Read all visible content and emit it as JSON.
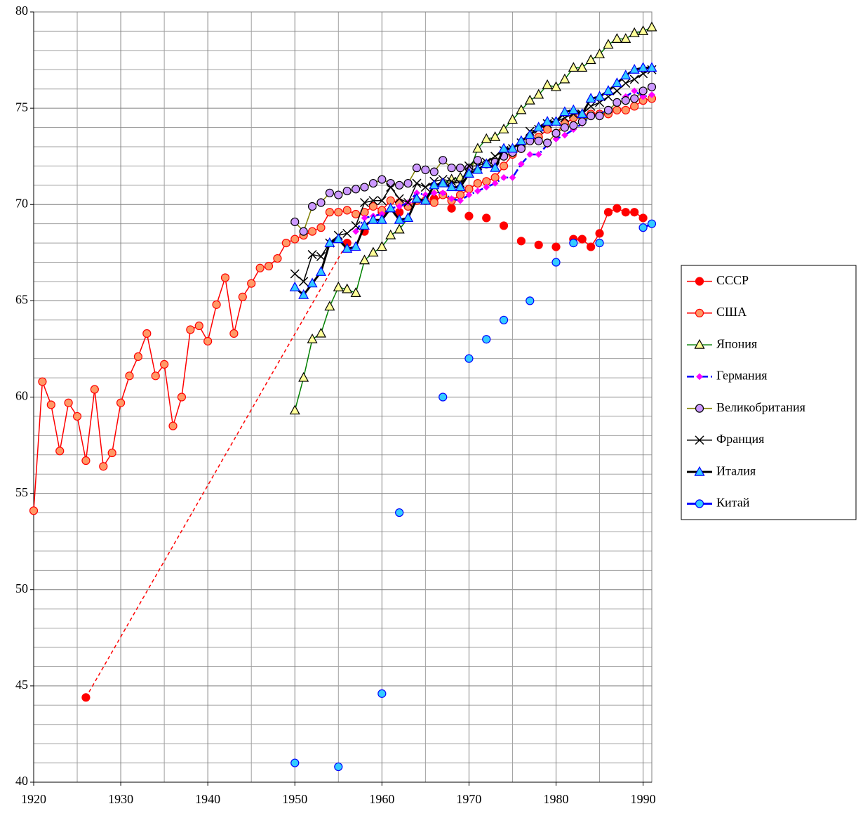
{
  "chart_data": {
    "type": "line",
    "xlim": [
      1920,
      1991
    ],
    "xticks": [
      1920,
      1930,
      1940,
      1950,
      1960,
      1970,
      1980,
      1990
    ],
    "x_minor_ticks": [
      1925,
      1935,
      1945,
      1955,
      1965,
      1975,
      1985
    ],
    "ylim": [
      40,
      80
    ],
    "yticks": [
      40,
      45,
      50,
      55,
      60,
      65,
      70,
      75,
      80
    ],
    "y_minor_ticks": [
      41,
      42,
      43,
      44,
      46,
      47,
      48,
      49,
      51,
      52,
      53,
      54,
      56,
      57,
      58,
      59,
      61,
      62,
      63,
      64,
      66,
      67,
      68,
      69,
      71,
      72,
      73,
      74,
      76,
      77,
      78,
      79
    ],
    "grid": true,
    "legend": "right",
    "series": [
      {
        "name": "СССР",
        "color": "#ff0000",
        "marker": "circle",
        "marker_fill": "#ff0000",
        "marker_stroke": "#ff0000",
        "line_width": 1.5,
        "dashed_gaps": true,
        "x": [
          1926,
          1956,
          1958,
          1960,
          1962,
          1966,
          1968,
          1970,
          1972,
          1974,
          1976,
          1978,
          1980,
          1982,
          1983,
          1984,
          1985,
          1986,
          1987,
          1988,
          1989,
          1990
        ],
        "values": [
          44.4,
          68.0,
          68.6,
          69.6,
          69.6,
          70.3,
          69.8,
          69.4,
          69.3,
          68.9,
          68.1,
          67.9,
          67.8,
          68.2,
          68.2,
          67.8,
          68.5,
          69.6,
          69.8,
          69.6,
          69.6,
          69.3
        ]
      },
      {
        "name": "США",
        "color": "#ff0000",
        "marker": "circle",
        "marker_fill": "#ff9966",
        "marker_stroke": "#ff0000",
        "line_width": 1.5,
        "x": [
          1920,
          1921,
          1922,
          1923,
          1924,
          1925,
          1926,
          1927,
          1928,
          1929,
          1930,
          1931,
          1932,
          1933,
          1934,
          1935,
          1936,
          1937,
          1938,
          1939,
          1940,
          1941,
          1942,
          1943,
          1944,
          1945,
          1946,
          1947,
          1948,
          1949,
          1950,
          1951,
          1952,
          1953,
          1954,
          1955,
          1956,
          1957,
          1958,
          1959,
          1960,
          1961,
          1962,
          1963,
          1964,
          1965,
          1966,
          1967,
          1968,
          1969,
          1970,
          1971,
          1972,
          1973,
          1974,
          1975,
          1976,
          1977,
          1978,
          1979,
          1980,
          1981,
          1982,
          1983,
          1984,
          1985,
          1986,
          1987,
          1988,
          1989,
          1990,
          1991
        ],
        "values": [
          54.1,
          60.8,
          59.6,
          57.2,
          59.7,
          59.0,
          56.7,
          60.4,
          56.4,
          57.1,
          59.7,
          61.1,
          62.1,
          63.3,
          61.1,
          61.7,
          58.5,
          60.0,
          63.5,
          63.7,
          62.9,
          64.8,
          66.2,
          63.3,
          65.2,
          65.9,
          66.7,
          66.8,
          67.2,
          68.0,
          68.2,
          68.4,
          68.6,
          68.8,
          69.6,
          69.6,
          69.7,
          69.5,
          69.6,
          69.9,
          69.7,
          70.2,
          70.1,
          69.9,
          70.2,
          70.2,
          70.1,
          70.5,
          70.2,
          70.5,
          70.8,
          71.1,
          71.2,
          71.4,
          72.0,
          72.6,
          72.9,
          73.3,
          73.5,
          73.9,
          73.7,
          74.2,
          74.5,
          74.6,
          74.7,
          74.7,
          74.7,
          74.9,
          74.9,
          75.1,
          75.4,
          75.5
        ]
      },
      {
        "name": "Япония",
        "color": "#008000",
        "marker": "triangle",
        "marker_fill": "#ffff99",
        "marker_stroke": "#000000",
        "line_width": 1.5,
        "x": [
          1950,
          1951,
          1952,
          1953,
          1954,
          1955,
          1956,
          1957,
          1958,
          1959,
          1960,
          1961,
          1962,
          1963,
          1964,
          1965,
          1966,
          1967,
          1968,
          1969,
          1970,
          1971,
          1972,
          1973,
          1974,
          1975,
          1976,
          1977,
          1978,
          1979,
          1980,
          1981,
          1982,
          1983,
          1984,
          1985,
          1986,
          1987,
          1988,
          1989,
          1990,
          1991
        ],
        "values": [
          59.3,
          61.0,
          63.0,
          63.3,
          64.7,
          65.7,
          65.6,
          65.4,
          67.1,
          67.5,
          67.8,
          68.4,
          68.7,
          69.3,
          70.3,
          70.2,
          70.8,
          71.1,
          71.3,
          71.4,
          71.6,
          72.9,
          73.4,
          73.5,
          73.9,
          74.4,
          74.9,
          75.4,
          75.7,
          76.2,
          76.1,
          76.5,
          77.1,
          77.1,
          77.5,
          77.8,
          78.3,
          78.6,
          78.6,
          78.9,
          79.0,
          79.2
        ]
      },
      {
        "name": "Германия",
        "color": "#0000ff",
        "marker": "diamond",
        "marker_fill": "#ff00ff",
        "marker_stroke": "#ff00ff",
        "line_width": 2.5,
        "dash": "10 4 2 4",
        "x": [
          1957,
          1958,
          1959,
          1960,
          1961,
          1962,
          1963,
          1964,
          1965,
          1966,
          1967,
          1968,
          1969,
          1970,
          1971,
          1972,
          1973,
          1974,
          1975,
          1976,
          1977,
          1978,
          1979,
          1980,
          1981,
          1982,
          1983,
          1984,
          1985,
          1986,
          1987,
          1988,
          1989,
          1990,
          1991
        ],
        "values": [
          68.6,
          69.3,
          69.4,
          69.5,
          69.8,
          69.9,
          70.1,
          70.6,
          70.5,
          70.6,
          70.6,
          70.3,
          70.2,
          70.5,
          70.7,
          70.9,
          71.1,
          71.4,
          71.4,
          72.1,
          72.6,
          72.6,
          73.1,
          73.4,
          73.6,
          73.9,
          74.2,
          74.6,
          74.7,
          74.9,
          75.3,
          75.6,
          75.9,
          75.6,
          75.7
        ]
      },
      {
        "name": "Великобритания",
        "color": "#808000",
        "marker": "circle",
        "marker_fill": "#cc99ff",
        "marker_stroke": "#000000",
        "line_width": 1.5,
        "x": [
          1950,
          1951,
          1952,
          1953,
          1954,
          1955,
          1956,
          1957,
          1958,
          1959,
          1960,
          1961,
          1962,
          1963,
          1964,
          1965,
          1966,
          1967,
          1968,
          1969,
          1970,
          1971,
          1972,
          1973,
          1974,
          1975,
          1976,
          1977,
          1978,
          1979,
          1980,
          1981,
          1982,
          1983,
          1984,
          1985,
          1986,
          1987,
          1988,
          1989,
          1990,
          1991
        ],
        "values": [
          69.1,
          68.6,
          69.9,
          70.1,
          70.6,
          70.5,
          70.7,
          70.8,
          70.9,
          71.1,
          71.3,
          71.1,
          71.0,
          71.1,
          71.9,
          71.8,
          71.7,
          72.3,
          71.9,
          71.9,
          71.9,
          72.3,
          72.1,
          72.2,
          72.5,
          72.7,
          72.9,
          73.3,
          73.3,
          73.2,
          73.7,
          74.0,
          74.1,
          74.3,
          74.6,
          74.6,
          74.9,
          75.3,
          75.4,
          75.5,
          75.9,
          76.1
        ]
      },
      {
        "name": "Франция",
        "color": "#000000",
        "marker": "cross",
        "marker_fill": "none",
        "marker_stroke": "#000000",
        "line_width": 1.5,
        "x": [
          1950,
          1951,
          1952,
          1953,
          1954,
          1955,
          1956,
          1957,
          1958,
          1959,
          1960,
          1961,
          1962,
          1963,
          1964,
          1965,
          1966,
          1967,
          1968,
          1969,
          1970,
          1971,
          1972,
          1973,
          1974,
          1975,
          1976,
          1977,
          1978,
          1979,
          1980,
          1981,
          1982,
          1983,
          1984,
          1985,
          1986,
          1987,
          1988,
          1989,
          1990,
          1991
        ],
        "values": [
          66.4,
          66.0,
          67.4,
          67.3,
          68.0,
          68.4,
          68.5,
          68.9,
          70.1,
          70.2,
          70.2,
          70.9,
          70.3,
          70.1,
          71.1,
          70.9,
          71.2,
          71.3,
          71.2,
          71.1,
          72.0,
          72.0,
          72.2,
          72.5,
          72.8,
          72.9,
          73.2,
          73.8,
          73.9,
          74.2,
          74.3,
          74.5,
          74.7,
          74.7,
          75.1,
          75.3,
          75.6,
          75.9,
          76.3,
          76.5,
          76.8,
          77.0
        ]
      },
      {
        "name": "Италия",
        "color": "#000000",
        "marker": "triangle",
        "marker_fill": "#33ccff",
        "marker_stroke": "#0000ff",
        "line_width": 3,
        "x": [
          1950,
          1951,
          1952,
          1953,
          1954,
          1955,
          1956,
          1957,
          1958,
          1959,
          1960,
          1961,
          1962,
          1963,
          1964,
          1965,
          1966,
          1967,
          1968,
          1969,
          1970,
          1971,
          1972,
          1973,
          1974,
          1975,
          1976,
          1977,
          1978,
          1979,
          1980,
          1981,
          1982,
          1983,
          1984,
          1985,
          1986,
          1987,
          1988,
          1989,
          1990,
          1991
        ],
        "values": [
          65.7,
          65.3,
          65.9,
          66.5,
          68.0,
          68.2,
          67.7,
          67.8,
          68.9,
          69.2,
          69.2,
          69.8,
          69.2,
          69.3,
          70.3,
          70.2,
          71.0,
          71.1,
          70.9,
          70.9,
          71.6,
          71.8,
          72.1,
          71.9,
          72.9,
          72.9,
          73.3,
          73.6,
          74.0,
          74.3,
          74.3,
          74.8,
          74.9,
          74.7,
          75.5,
          75.6,
          75.9,
          76.3,
          76.7,
          77.0,
          77.1,
          77.1
        ]
      },
      {
        "name": "Китай",
        "color": "#0000ff",
        "marker": "circle",
        "marker_fill": "#33ccff",
        "marker_stroke": "#0000ff",
        "line_width": 3,
        "x": [
          1950,
          1955,
          1960,
          1962,
          1967,
          1970,
          1972,
          1974,
          1977,
          1980,
          1982,
          1985,
          1990,
          1991
        ],
        "values": [
          41.0,
          40.8,
          44.6,
          54.0,
          60.0,
          62.0,
          63.0,
          64.0,
          65.0,
          67.0,
          68.0,
          68.0,
          68.8,
          69.0
        ]
      }
    ]
  }
}
